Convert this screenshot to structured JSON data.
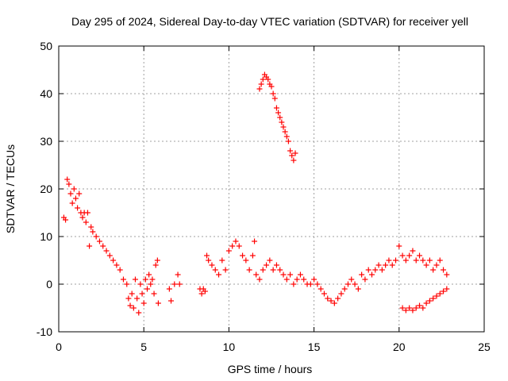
{
  "chart_data": {
    "type": "scatter",
    "title": "Day 295 of 2024, Sidereal Day-to-day VTEC variation (SDTVAR) for receiver yell",
    "xlabel": "GPS time / hours",
    "ylabel": "SDTVAR / TECUs",
    "xlim": [
      0,
      25
    ],
    "ylim": [
      -10,
      50
    ],
    "xticks": [
      "0",
      "5",
      "10",
      "15",
      "20",
      "25"
    ],
    "yticks": [
      "-10",
      "0",
      "10",
      "20",
      "30",
      "40",
      "50"
    ],
    "grid": true,
    "marker": "+",
    "marker_color": "#ff0000",
    "series": [
      {
        "name": "SDTVAR",
        "points": [
          [
            0.3,
            14
          ],
          [
            0.4,
            13.5
          ],
          [
            0.5,
            22
          ],
          [
            0.6,
            21
          ],
          [
            0.7,
            19
          ],
          [
            0.8,
            17
          ],
          [
            0.9,
            20
          ],
          [
            1.0,
            18
          ],
          [
            1.1,
            16
          ],
          [
            1.2,
            19
          ],
          [
            1.3,
            15
          ],
          [
            1.4,
            14
          ],
          [
            1.5,
            15
          ],
          [
            1.6,
            13
          ],
          [
            1.7,
            15
          ],
          [
            1.8,
            8
          ],
          [
            1.9,
            12
          ],
          [
            2.0,
            11
          ],
          [
            2.2,
            10
          ],
          [
            2.4,
            9
          ],
          [
            2.6,
            8
          ],
          [
            2.8,
            7
          ],
          [
            3.0,
            6
          ],
          [
            3.2,
            5
          ],
          [
            3.4,
            4
          ],
          [
            3.6,
            3
          ],
          [
            3.8,
            1
          ],
          [
            4.0,
            0
          ],
          [
            4.1,
            -3
          ],
          [
            4.2,
            -4.5
          ],
          [
            4.3,
            -2
          ],
          [
            4.4,
            -5
          ],
          [
            4.5,
            1
          ],
          [
            4.6,
            -3
          ],
          [
            4.7,
            -6
          ],
          [
            4.8,
            0
          ],
          [
            4.9,
            -2
          ],
          [
            5.0,
            -4
          ],
          [
            5.1,
            1
          ],
          [
            5.2,
            -1
          ],
          [
            5.3,
            2
          ],
          [
            5.4,
            0
          ],
          [
            5.5,
            1
          ],
          [
            5.6,
            -2
          ],
          [
            5.7,
            4
          ],
          [
            5.8,
            5
          ],
          [
            5.85,
            -4
          ],
          [
            6.5,
            -1
          ],
          [
            6.6,
            -3.5
          ],
          [
            6.8,
            0
          ],
          [
            7.0,
            2
          ],
          [
            7.1,
            0
          ],
          [
            8.3,
            -1
          ],
          [
            8.4,
            -2
          ],
          [
            8.5,
            -1
          ],
          [
            8.6,
            -1.5
          ],
          [
            8.7,
            6
          ],
          [
            8.8,
            5
          ],
          [
            9.0,
            4
          ],
          [
            9.2,
            3
          ],
          [
            9.4,
            2
          ],
          [
            9.6,
            5
          ],
          [
            9.8,
            3
          ],
          [
            10.0,
            7
          ],
          [
            10.2,
            8
          ],
          [
            10.4,
            9
          ],
          [
            10.6,
            8
          ],
          [
            10.8,
            6
          ],
          [
            11.0,
            5
          ],
          [
            11.2,
            3
          ],
          [
            11.4,
            6
          ],
          [
            11.5,
            9
          ],
          [
            11.6,
            2
          ],
          [
            11.8,
            1
          ],
          [
            12.0,
            3
          ],
          [
            12.2,
            4
          ],
          [
            12.4,
            5
          ],
          [
            12.6,
            3
          ],
          [
            12.8,
            4
          ],
          [
            13.0,
            3
          ],
          [
            13.2,
            2
          ],
          [
            13.4,
            1
          ],
          [
            13.6,
            2
          ],
          [
            13.8,
            0
          ],
          [
            14.0,
            1
          ],
          [
            14.2,
            2
          ],
          [
            14.4,
            1
          ],
          [
            14.6,
            0
          ],
          [
            14.8,
            0
          ],
          [
            15.0,
            1
          ],
          [
            15.2,
            0
          ],
          [
            15.4,
            -1
          ],
          [
            15.6,
            -2
          ],
          [
            15.8,
            -3
          ],
          [
            16.0,
            -3.5
          ],
          [
            16.2,
            -4
          ],
          [
            16.4,
            -3
          ],
          [
            16.6,
            -2
          ],
          [
            16.8,
            -1
          ],
          [
            17.0,
            0
          ],
          [
            17.2,
            1
          ],
          [
            17.4,
            0
          ],
          [
            17.6,
            -1
          ],
          [
            17.8,
            2
          ],
          [
            18.0,
            1
          ],
          [
            18.2,
            3
          ],
          [
            18.4,
            2
          ],
          [
            18.6,
            3
          ],
          [
            18.8,
            4
          ],
          [
            19.0,
            3
          ],
          [
            19.2,
            4
          ],
          [
            19.4,
            5
          ],
          [
            19.6,
            4
          ],
          [
            19.8,
            5
          ],
          [
            20.0,
            8
          ],
          [
            20.2,
            6
          ],
          [
            20.4,
            5
          ],
          [
            20.6,
            6
          ],
          [
            20.8,
            7
          ],
          [
            21.0,
            5
          ],
          [
            21.2,
            6
          ],
          [
            21.4,
            5
          ],
          [
            21.6,
            4
          ],
          [
            21.8,
            5
          ],
          [
            22.0,
            3
          ],
          [
            22.2,
            4
          ],
          [
            22.4,
            5
          ],
          [
            22.6,
            3
          ],
          [
            22.8,
            2
          ],
          [
            20.2,
            -5
          ],
          [
            20.4,
            -5.5
          ],
          [
            20.6,
            -5
          ],
          [
            20.8,
            -5.5
          ],
          [
            21.0,
            -5
          ],
          [
            21.2,
            -4.5
          ],
          [
            21.4,
            -5
          ],
          [
            21.6,
            -4
          ],
          [
            21.8,
            -3.5
          ],
          [
            22.0,
            -3
          ],
          [
            22.2,
            -2.5
          ],
          [
            22.4,
            -2
          ],
          [
            22.6,
            -1.5
          ],
          [
            22.8,
            -1
          ],
          [
            11.8,
            41
          ],
          [
            11.9,
            42
          ],
          [
            12.0,
            43
          ],
          [
            12.1,
            44
          ],
          [
            12.2,
            43.5
          ],
          [
            12.3,
            43
          ],
          [
            12.4,
            42
          ],
          [
            12.5,
            41.5
          ],
          [
            12.6,
            40
          ],
          [
            12.7,
            39
          ],
          [
            12.8,
            37
          ],
          [
            12.9,
            36
          ],
          [
            13.0,
            35
          ],
          [
            13.1,
            34
          ],
          [
            13.2,
            33
          ],
          [
            13.3,
            32
          ],
          [
            13.4,
            31
          ],
          [
            13.5,
            30
          ],
          [
            13.6,
            28
          ],
          [
            13.7,
            27
          ],
          [
            13.8,
            26
          ],
          [
            13.9,
            27.5
          ]
        ]
      }
    ]
  }
}
